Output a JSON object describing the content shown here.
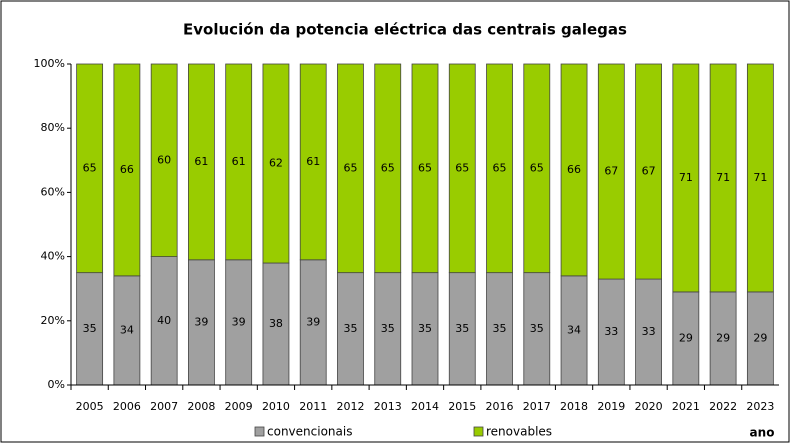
{
  "chart_data": {
    "type": "bar",
    "stacked": true,
    "title": "Evolución da potencia eléctrica das centrais galegas",
    "x_label": "ano",
    "categories": [
      "2005",
      "2006",
      "2007",
      "2008",
      "2009",
      "2010",
      "2011",
      "2012",
      "2013",
      "2014",
      "2015",
      "2016",
      "2017",
      "2018",
      "2019",
      "2020",
      "2021",
      "2022",
      "2023"
    ],
    "series": [
      {
        "name": "convencionais",
        "color": "#a0a0a0",
        "values": [
          35,
          34,
          40,
          39,
          39,
          38,
          39,
          35,
          35,
          35,
          35,
          35,
          35,
          34,
          33,
          33,
          29,
          29,
          29
        ]
      },
      {
        "name": "renovables",
        "color": "#99cc00",
        "values": [
          65,
          66,
          60,
          61,
          61,
          62,
          61,
          65,
          65,
          65,
          65,
          65,
          65,
          66,
          67,
          67,
          71,
          71,
          71
        ]
      }
    ],
    "ylim": [
      0,
      100
    ],
    "yticks": [
      {
        "value": 0,
        "label": "0%"
      },
      {
        "value": 20,
        "label": "20%"
      },
      {
        "value": 40,
        "label": "40%"
      },
      {
        "value": 60,
        "label": "60%"
      },
      {
        "value": 80,
        "label": "80%"
      },
      {
        "value": 100,
        "label": "100%"
      }
    ],
    "legend": "bottom"
  }
}
